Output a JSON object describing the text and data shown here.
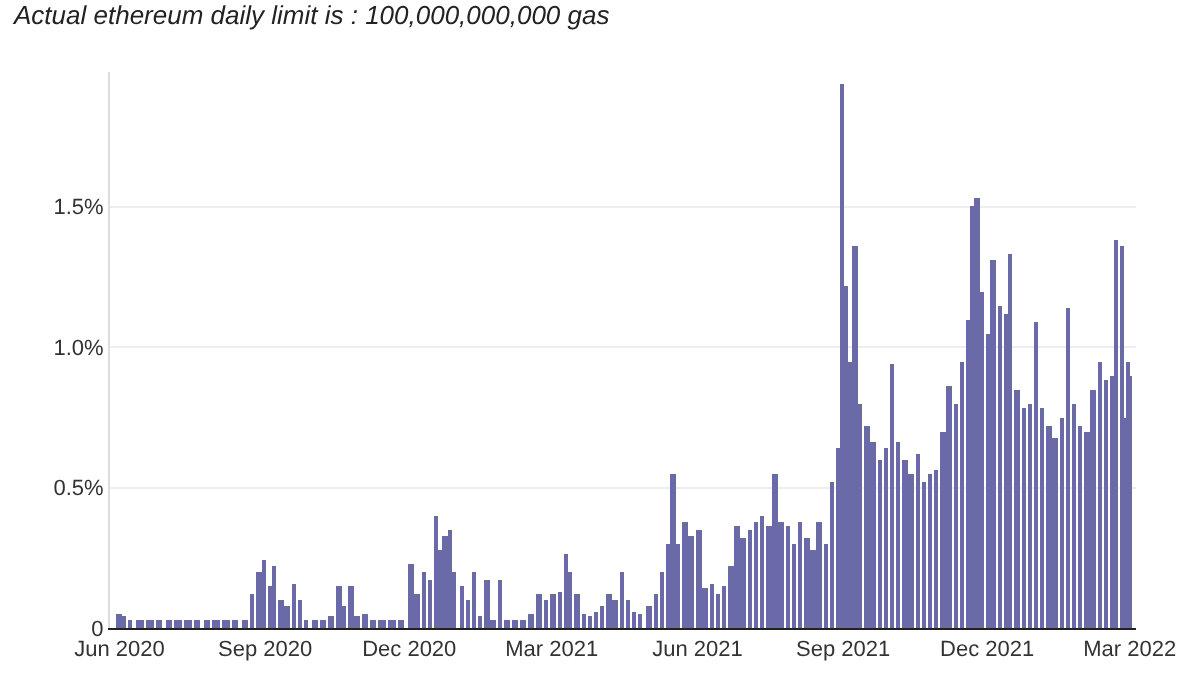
{
  "chart_data": {
    "type": "bar",
    "subtitle": "Actual ethereum daily limit is : 100,000,000,000 gas",
    "x": [
      "2020-06-01",
      "2020-06-04",
      "2020-06-08",
      "2020-06-14",
      "2020-06-20",
      "2020-06-26",
      "2020-07-02",
      "2020-07-08",
      "2020-07-14",
      "2020-07-20",
      "2020-07-26",
      "2020-08-01",
      "2020-08-07",
      "2020-08-13",
      "2020-08-19",
      "2020-08-24",
      "2020-08-28",
      "2020-09-01",
      "2020-09-04",
      "2020-09-07",
      "2020-09-11",
      "2020-09-15",
      "2020-09-19",
      "2020-09-23",
      "2020-09-27",
      "2020-10-02",
      "2020-10-08",
      "2020-10-13",
      "2020-10-18",
      "2020-10-21",
      "2020-10-25",
      "2020-10-29",
      "2020-11-03",
      "2020-11-08",
      "2020-11-14",
      "2020-11-20",
      "2020-11-26",
      "2020-12-02",
      "2020-12-06",
      "2020-12-10",
      "2020-12-14",
      "2020-12-18",
      "2020-12-21",
      "2020-12-24",
      "2020-12-27",
      "2020-12-30",
      "2021-01-03",
      "2021-01-07",
      "2021-01-11",
      "2021-01-15",
      "2021-01-19",
      "2021-01-23",
      "2021-01-27",
      "2021-02-01",
      "2021-02-06",
      "2021-02-11",
      "2021-02-16",
      "2021-02-21",
      "2021-02-25",
      "2021-03-02",
      "2021-03-06",
      "2021-03-10",
      "2021-03-13",
      "2021-03-17",
      "2021-03-21",
      "2021-03-25",
      "2021-03-29",
      "2021-04-02",
      "2021-04-06",
      "2021-04-10",
      "2021-04-14",
      "2021-04-18",
      "2021-04-22",
      "2021-04-26",
      "2021-05-01",
      "2021-05-06",
      "2021-05-10",
      "2021-05-14",
      "2021-05-17",
      "2021-05-20",
      "2021-05-24",
      "2021-05-28",
      "2021-06-02",
      "2021-06-06",
      "2021-06-10",
      "2021-06-14",
      "2021-06-18",
      "2021-06-22",
      "2021-06-26",
      "2021-06-30",
      "2021-07-04",
      "2021-07-08",
      "2021-07-12",
      "2021-07-16",
      "2021-07-20",
      "2021-07-24",
      "2021-07-28",
      "2021-08-01",
      "2021-08-05",
      "2021-08-09",
      "2021-08-13",
      "2021-08-17",
      "2021-08-21",
      "2021-08-25",
      "2021-08-29",
      "2021-09-01",
      "2021-09-03",
      "2021-09-06",
      "2021-09-09",
      "2021-09-12",
      "2021-09-16",
      "2021-09-20",
      "2021-09-24",
      "2021-09-28",
      "2021-10-02",
      "2021-10-06",
      "2021-10-10",
      "2021-10-14",
      "2021-10-18",
      "2021-10-22",
      "2021-10-26",
      "2021-10-30",
      "2021-11-03",
      "2021-11-07",
      "2021-11-11",
      "2021-11-15",
      "2021-11-19",
      "2021-11-22",
      "2021-11-25",
      "2021-11-28",
      "2021-12-02",
      "2021-12-05",
      "2021-12-09",
      "2021-12-13",
      "2021-12-16",
      "2021-12-20",
      "2021-12-24",
      "2021-12-28",
      "2022-01-01",
      "2022-01-05",
      "2022-01-09",
      "2022-01-13",
      "2022-01-17",
      "2022-01-21",
      "2022-01-25",
      "2022-01-29",
      "2022-02-02",
      "2022-02-06",
      "2022-02-10",
      "2022-02-14",
      "2022-02-18",
      "2022-02-21",
      "2022-02-24",
      "2022-02-26",
      "2022-02-28",
      "2022-03-01"
    ],
    "values": [
      0.05,
      0.04,
      0.03,
      0.03,
      0.03,
      0.03,
      0.03,
      0.03,
      0.03,
      0.03,
      0.03,
      0.03,
      0.03,
      0.03,
      0.03,
      0.12,
      0.2,
      0.24,
      0.15,
      0.22,
      0.1,
      0.08,
      0.16,
      0.1,
      0.03,
      0.03,
      0.03,
      0.04,
      0.15,
      0.08,
      0.15,
      0.04,
      0.05,
      0.03,
      0.03,
      0.03,
      0.03,
      0.23,
      0.12,
      0.2,
      0.17,
      0.4,
      0.28,
      0.33,
      0.35,
      0.2,
      0.15,
      0.1,
      0.2,
      0.04,
      0.17,
      0.03,
      0.17,
      0.03,
      0.03,
      0.03,
      0.05,
      0.12,
      0.1,
      0.12,
      0.13,
      0.26,
      0.2,
      0.12,
      0.05,
      0.04,
      0.06,
      0.08,
      0.12,
      0.1,
      0.2,
      0.1,
      0.06,
      0.05,
      0.08,
      0.12,
      0.2,
      0.3,
      0.55,
      0.3,
      0.38,
      0.33,
      0.35,
      0.14,
      0.16,
      0.12,
      0.15,
      0.22,
      0.36,
      0.32,
      0.35,
      0.38,
      0.4,
      0.36,
      0.55,
      0.38,
      0.36,
      0.3,
      0.38,
      0.32,
      0.28,
      0.38,
      0.3,
      0.52,
      0.64,
      1.94,
      1.22,
      0.95,
      1.36,
      0.8,
      0.72,
      0.66,
      0.6,
      0.64,
      0.94,
      0.66,
      0.6,
      0.55,
      0.62,
      0.52,
      0.55,
      0.56,
      0.7,
      0.86,
      0.8,
      0.95,
      1.1,
      1.5,
      1.53,
      1.2,
      1.05,
      1.31,
      1.15,
      1.12,
      1.33,
      0.85,
      0.78,
      0.8,
      1.09,
      0.78,
      0.72,
      0.68,
      0.75,
      1.14,
      0.8,
      0.72,
      0.7,
      0.85,
      0.95,
      0.88,
      0.9,
      1.38,
      1.36,
      0.75,
      0.95,
      0.9
    ],
    "color": "#6b6aa8",
    "xlim": [
      "2020-05-26",
      "2022-03-05"
    ],
    "xticks": [
      {
        "value": "2020-06-01",
        "label": "Jun 2020"
      },
      {
        "value": "2020-09-01",
        "label": "Sep 2020"
      },
      {
        "value": "2020-12-01",
        "label": "Dec 2020"
      },
      {
        "value": "2021-03-01",
        "label": "Mar 2021"
      },
      {
        "value": "2021-06-01",
        "label": "Jun 2021"
      },
      {
        "value": "2021-09-01",
        "label": "Sep 2021"
      },
      {
        "value": "2021-12-01",
        "label": "Dec 2021"
      },
      {
        "value": "2022-03-01",
        "label": "Mar 2022"
      }
    ],
    "ylim": [
      0,
      1.98
    ],
    "yticks": [
      0,
      {
        "value": 0.5,
        "label": "0.5%"
      },
      {
        "value": 1.0,
        "label": "1.0%"
      },
      {
        "value": 1.5,
        "label": "1.5%"
      }
    ],
    "grid": "y",
    "legend": false
  }
}
